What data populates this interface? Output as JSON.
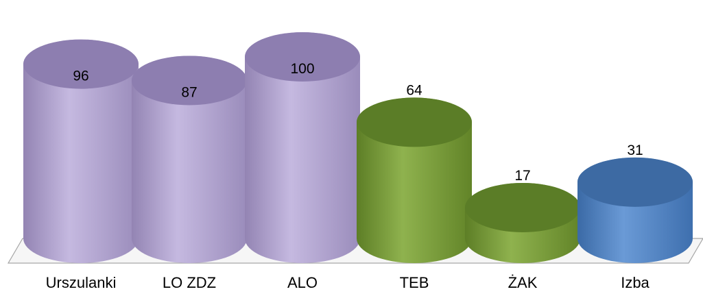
{
  "chart_data": {
    "type": "bar",
    "style": "3d-cylinder",
    "categories": [
      "Urszulanki",
      "LO ZDZ",
      "ALO",
      "TEB",
      "ŻAK",
      "Izba"
    ],
    "values": [
      96,
      87,
      100,
      64,
      17,
      31
    ],
    "data_labels": [
      "96",
      "87",
      "100",
      "64",
      "17",
      "31"
    ],
    "bar_colors": [
      "#a99bc6",
      "#a99bc6",
      "#a99bc6",
      "#77993a",
      "#77993a",
      "#4a7fbf"
    ],
    "legend": "none",
    "grid": false,
    "ylim": [
      0,
      100
    ]
  }
}
